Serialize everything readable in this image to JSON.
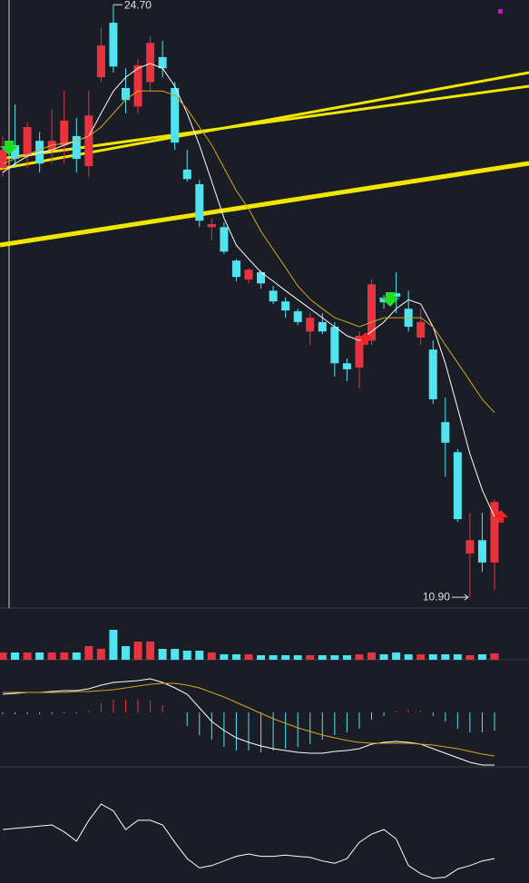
{
  "chart_data": {
    "type": "candlestick",
    "max_label": "24.70",
    "min_label": "10.90",
    "ylim": [
      10.65,
      24.81
    ],
    "up_color": "#e8323e",
    "down_color": "#52e3f0",
    "open": [
      20.9,
      21.43,
      21.21,
      21.53,
      21.32,
      21.43,
      21.64,
      20.94,
      23.01,
      24.28,
      22.76,
      22.33,
      22.9,
      23.48,
      22.76,
      20.86,
      20.52,
      19.52,
      19.52,
      18.74,
      18.3,
      18.47,
      18.04,
      17.79,
      17.56,
      17.09,
      17.31,
      17.2,
      16.35,
      16.25,
      16.88,
      17.88,
      17.98,
      17.62,
      16.95,
      16.67,
      14.98,
      14.28,
      11.92,
      12.23,
      11.71
    ],
    "high": [
      21.64,
      22.38,
      21.95,
      21.74,
      22.27,
      22.69,
      22.06,
      22.69,
      24.17,
      24.7,
      23.22,
      23.43,
      23.96,
      23.86,
      22.9,
      21.32,
      20.62,
      19.73,
      19.63,
      18.78,
      18.57,
      18.51,
      18.15,
      17.88,
      17.62,
      17.52,
      17.52,
      17.31,
      16.46,
      17.09,
      18.3,
      17.94,
      18.47,
      18.04,
      17.62,
      16.88,
      15.55,
      14.35,
      12.87,
      12.87,
      13.18
    ],
    "low": [
      20.69,
      20.9,
      20.9,
      20.79,
      21.0,
      21.0,
      20.79,
      20.69,
      22.9,
      23.12,
      22.17,
      22.17,
      22.69,
      23.01,
      21.32,
      20.58,
      19.52,
      19.21,
      18.89,
      18.26,
      18.21,
      18.09,
      17.73,
      17.41,
      17.24,
      16.78,
      17.03,
      16.04,
      15.93,
      15.76,
      16.78,
      17.62,
      17.52,
      17.09,
      16.78,
      15.4,
      13.71,
      12.66,
      10.9,
      11.49,
      11.07
    ],
    "close": [
      21.32,
      21.11,
      21.85,
      21.0,
      21.53,
      22.0,
      21.11,
      22.12,
      23.75,
      23.26,
      22.48,
      23.29,
      23.81,
      23.22,
      21.49,
      20.64,
      19.67,
      19.59,
      18.95,
      18.36,
      18.53,
      18.21,
      17.79,
      17.58,
      17.31,
      17.41,
      17.09,
      16.35,
      16.21,
      16.99,
      18.19,
      17.77,
      17.9,
      17.2,
      17.31,
      15.51,
      14.5,
      12.72,
      12.23,
      11.71,
      13.12
    ],
    "ma": [
      {
        "color": "#ffffff",
        "values": [
          20.79,
          21.0,
          21.17,
          21.26,
          21.32,
          21.43,
          21.53,
          21.64,
          22.17,
          22.69,
          23.01,
          23.22,
          23.33,
          23.22,
          22.8,
          22.17,
          21.43,
          20.58,
          19.73,
          19.1,
          18.78,
          18.47,
          18.26,
          18.04,
          17.83,
          17.62,
          17.41,
          17.2,
          16.99,
          16.88,
          17.09,
          17.31,
          17.62,
          17.83,
          17.73,
          17.2,
          16.35,
          15.3,
          14.24,
          13.4,
          12.77
        ]
      },
      {
        "color": "#d9a520",
        "values": [
          21.0,
          21.11,
          21.21,
          21.32,
          21.43,
          21.47,
          21.53,
          21.64,
          21.85,
          22.17,
          22.49,
          22.69,
          22.69,
          22.69,
          22.59,
          22.27,
          21.85,
          21.43,
          20.9,
          20.37,
          19.95,
          19.42,
          19.0,
          18.58,
          18.15,
          17.84,
          17.62,
          17.41,
          17.31,
          17.2,
          17.31,
          17.41,
          17.41,
          17.41,
          17.41,
          17.2,
          16.78,
          16.36,
          15.94,
          15.51,
          15.2
        ]
      }
    ],
    "volume": {
      "ylim": [
        0,
        57
      ],
      "values": [
        8,
        8,
        8,
        8,
        8,
        8,
        8,
        15,
        12,
        33,
        15,
        20,
        20,
        12,
        12,
        10,
        10,
        8,
        6,
        6,
        6,
        5,
        5,
        5,
        5,
        5,
        5,
        5,
        5,
        6,
        8,
        6,
        8,
        6,
        6,
        6,
        6,
        6,
        5,
        6,
        7
      ]
    },
    "macd": {
      "ylim": [
        -60,
        58
      ],
      "hist": [
        -2,
        -2,
        -2,
        -2,
        -2,
        -1,
        -1,
        2,
        10,
        14,
        14,
        14,
        13,
        8,
        0,
        -15,
        -25,
        -30,
        -38,
        -42,
        -42,
        -44,
        -42,
        -40,
        -38,
        -35,
        -30,
        -25,
        -22,
        -18,
        -8,
        -4,
        2,
        3,
        2,
        -4,
        -10,
        -18,
        -22,
        -22,
        -20
      ],
      "dif": {
        "color": "#ffffff",
        "values": [
          20,
          21,
          22,
          22,
          23,
          24,
          24,
          26,
          30,
          33,
          34,
          35,
          37,
          33,
          27,
          20,
          5,
          -10,
          -20,
          -28,
          -33,
          -37,
          -40,
          -42,
          -44,
          -45,
          -45,
          -43,
          -42,
          -40,
          -35,
          -33,
          -32,
          -33,
          -35,
          -40,
          -45,
          -50,
          -55,
          -58,
          -58
        ]
      },
      "dea": {
        "color": "#d9a520",
        "values": [
          22,
          22,
          22,
          22,
          22,
          22,
          23,
          23,
          24,
          25,
          27,
          29,
          31,
          32,
          32,
          30,
          27,
          22,
          17,
          11,
          5,
          -1,
          -7,
          -12,
          -17,
          -21,
          -25,
          -28,
          -31,
          -33,
          -34,
          -34,
          -34,
          -34,
          -35,
          -36,
          -38,
          -40,
          -43,
          -46,
          -48
        ]
      }
    },
    "oscillator": {
      "ylim": [
        0,
        100
      ],
      "color": "#ffffff",
      "values": [
        46,
        47,
        48,
        49,
        50,
        44,
        36,
        54,
        68,
        62,
        46,
        54,
        54,
        50,
        35,
        21,
        13,
        15,
        19,
        23,
        25,
        23,
        23,
        24,
        23,
        22,
        19,
        17,
        21,
        35,
        42,
        46,
        38,
        15,
        8,
        4,
        5,
        12,
        15,
        19,
        21
      ]
    }
  }
}
